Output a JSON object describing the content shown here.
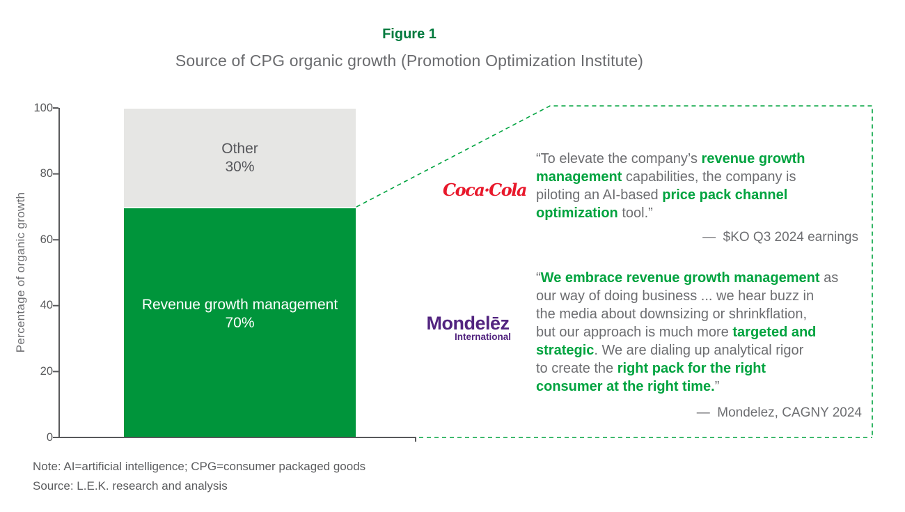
{
  "title": {
    "figure_label": "Figure 1",
    "subtitle": "Source of CPG organic growth (Promotion Optimization Institute)"
  },
  "chart_data": {
    "type": "bar",
    "stacked": true,
    "title": "Source of CPG organic growth (Promotion Optimization Institute)",
    "categories": [
      "CPG organic growth"
    ],
    "series": [
      {
        "name": "Revenue growth management",
        "values": [
          70
        ],
        "color": "#00953B",
        "label_lines": [
          "Revenue growth management",
          "70%"
        ]
      },
      {
        "name": "Other",
        "values": [
          30
        ],
        "color": "#E6E6E4",
        "label_lines": [
          "Other",
          "30%"
        ]
      }
    ],
    "ylabel": "Percentage of organic growth",
    "xlabel": "",
    "ylim": [
      0,
      100
    ],
    "yticks": [
      100,
      80,
      60,
      40,
      20,
      0
    ],
    "ytick_labels": [
      "100",
      "80",
      "60",
      "40",
      "20",
      "0"
    ],
    "grid": false,
    "legend": false
  },
  "quotes": [
    {
      "company": "Coca-Cola",
      "logo_text": "Coca·Cola",
      "segments": [
        {
          "t": "“To elevate the company’s ",
          "em": false
        },
        {
          "t": "revenue growth\nmanagement",
          "em": true
        },
        {
          "t": " capabilities, the company is\npiloting an AI-based ",
          "em": false
        },
        {
          "t": "price pack channel\noptimization",
          "em": true
        },
        {
          "t": " tool.”",
          "em": false
        }
      ],
      "attribution": "—  $KO Q3 2024 earnings"
    },
    {
      "company": "Mondelez International",
      "logo_text": "Mondelēz",
      "logo_subtext": "International",
      "segments": [
        {
          "t": "“",
          "em": false
        },
        {
          "t": "We embrace revenue growth management",
          "em": true
        },
        {
          "t": " as\nour way of doing business ... we hear buzz in\nthe media about downsizing or shrinkflation,\nbut our approach is much more ",
          "em": false
        },
        {
          "t": "targeted and\nstrategic",
          "em": true
        },
        {
          "t": ". We are dialing up analytical rigor\nto create the ",
          "em": false
        },
        {
          "t": "right pack for the right\nconsumer at the right time.",
          "em": true
        },
        {
          "t": "”",
          "em": false
        }
      ],
      "attribution": "—  Mondelez, CAGNY 2024"
    }
  ],
  "notes": {
    "note": "Note: AI=artificial intelligence; CPG=consumer packaged goods",
    "source": "Source: L.E.K. research and analysis"
  },
  "colors": {
    "green-dark": "#007A3D",
    "green-bar": "#00953B",
    "green-bright": "#00A33F",
    "gray-bar": "#E6E6E4",
    "coke-red": "#E8182B",
    "mdlz-purple": "#52247F",
    "text-gray": "#6D6E71",
    "axis-gray": "#58595B"
  }
}
